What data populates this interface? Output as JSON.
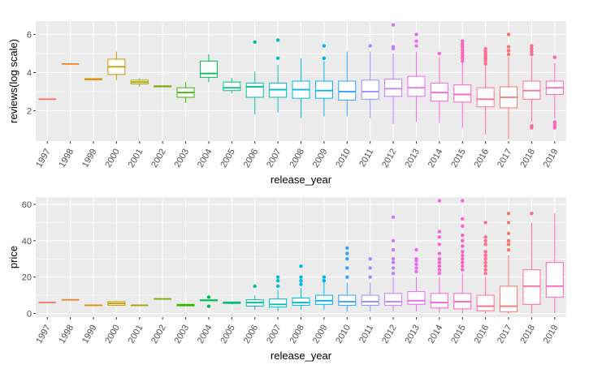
{
  "chart_data": [
    {
      "type": "box",
      "xlabel": "release_year",
      "ylabel": "reviews(log scale)",
      "ylim": [
        0.4,
        6.7
      ],
      "yticks": [
        2,
        4,
        6
      ],
      "grid": true,
      "legend": "none",
      "categories": [
        "1997",
        "1998",
        "1999",
        "2000",
        "2001",
        "2002",
        "2003",
        "2004",
        "2005",
        "2006",
        "2007",
        "2008",
        "2009",
        "2010",
        "2011",
        "2012",
        "2013",
        "2014",
        "2015",
        "2016",
        "2017",
        "2018",
        "2019"
      ],
      "colors": [
        "#F8766D",
        "#EA8331",
        "#D89000",
        "#C09B00",
        "#A3A500",
        "#7CAE00",
        "#39B600",
        "#00BB4E",
        "#00BF7D",
        "#00C1A3",
        "#00BFC4",
        "#00BAE0",
        "#00B0F6",
        "#35A2FF",
        "#9590FF",
        "#C77CFF",
        "#E76BF3",
        "#FA62DB",
        "#FF62BC",
        "#FF6C90",
        "#F8766D",
        "#FF6C90",
        "#FF62BC"
      ],
      "series": [
        {
          "x": "1997",
          "min": 2.6,
          "q1": 2.6,
          "median": 2.6,
          "q3": 2.6,
          "max": 2.6,
          "outliers": []
        },
        {
          "x": "1998",
          "min": 4.45,
          "q1": 4.45,
          "median": 4.45,
          "q3": 4.45,
          "max": 4.45,
          "outliers": []
        },
        {
          "x": "1999",
          "min": 3.6,
          "q1": 3.62,
          "median": 3.65,
          "q3": 3.68,
          "max": 3.7,
          "outliers": []
        },
        {
          "x": "2000",
          "min": 3.6,
          "q1": 3.9,
          "median": 4.3,
          "q3": 4.7,
          "max": 5.1,
          "outliers": []
        },
        {
          "x": "2001",
          "min": 3.25,
          "q1": 3.4,
          "median": 3.5,
          "q3": 3.6,
          "max": 3.7,
          "outliers": []
        },
        {
          "x": "2002",
          "min": 3.25,
          "q1": 3.25,
          "median": 3.27,
          "q3": 3.3,
          "max": 3.3,
          "outliers": []
        },
        {
          "x": "2003",
          "min": 2.4,
          "q1": 2.7,
          "median": 2.95,
          "q3": 3.2,
          "max": 3.5,
          "outliers": []
        },
        {
          "x": "2004",
          "min": 3.5,
          "q1": 3.75,
          "median": 3.95,
          "q3": 4.6,
          "max": 4.95,
          "outliers": []
        },
        {
          "x": "2005",
          "min": 2.9,
          "q1": 3.05,
          "median": 3.2,
          "q3": 3.5,
          "max": 3.7,
          "outliers": []
        },
        {
          "x": "2006",
          "min": 1.8,
          "q1": 2.7,
          "median": 3.25,
          "q3": 3.45,
          "max": 4.05,
          "outliers": [
            5.6
          ]
        },
        {
          "x": "2007",
          "min": 1.9,
          "q1": 2.7,
          "median": 3.1,
          "q3": 3.45,
          "max": 4.4,
          "outliers": [
            4.75,
            5.7
          ]
        },
        {
          "x": "2008",
          "min": 1.6,
          "q1": 2.65,
          "median": 3.1,
          "q3": 3.55,
          "max": 4.75,
          "outliers": []
        },
        {
          "x": "2009",
          "min": 1.7,
          "q1": 2.65,
          "median": 3.05,
          "q3": 3.55,
          "max": 4.6,
          "outliers": [
            4.75,
            5.4
          ]
        },
        {
          "x": "2010",
          "min": 1.7,
          "q1": 2.55,
          "median": 3.0,
          "q3": 3.55,
          "max": 5.1,
          "outliers": []
        },
        {
          "x": "2011",
          "min": 1.6,
          "q1": 2.6,
          "median": 3.0,
          "q3": 3.6,
          "max": 5.1,
          "outliers": [
            5.4
          ]
        },
        {
          "x": "2012",
          "min": 1.3,
          "q1": 2.75,
          "median": 3.15,
          "q3": 3.65,
          "max": 5.0,
          "outliers": [
            5.25,
            5.35,
            6.5
          ]
        },
        {
          "x": "2013",
          "min": 1.4,
          "q1": 2.75,
          "median": 3.2,
          "q3": 3.8,
          "max": 5.1,
          "outliers": [
            5.4,
            5.65,
            6.0
          ]
        },
        {
          "x": "2014",
          "min": 1.35,
          "q1": 2.5,
          "median": 2.95,
          "q3": 3.45,
          "max": 4.8,
          "outliers": [
            5.0
          ]
        },
        {
          "x": "2015",
          "min": 1.1,
          "q1": 2.45,
          "median": 2.85,
          "q3": 3.35,
          "max": 4.5,
          "outliers": [
            4.6,
            4.75,
            4.9,
            5.05,
            5.2,
            5.35,
            5.5,
            5.65
          ]
        },
        {
          "x": "2016",
          "min": 0.75,
          "q1": 2.2,
          "median": 2.6,
          "q3": 3.2,
          "max": 4.35,
          "outliers": [
            4.45,
            4.6,
            4.7,
            4.8,
            4.9,
            5.0,
            5.1,
            5.25
          ]
        },
        {
          "x": "2017",
          "min": 0.5,
          "q1": 2.15,
          "median": 2.7,
          "q3": 3.25,
          "max": 4.8,
          "outliers": [
            4.95,
            5.15,
            5.35,
            6.0
          ]
        },
        {
          "x": "2018",
          "min": 1.4,
          "q1": 2.6,
          "median": 3.05,
          "q3": 3.55,
          "max": 4.8,
          "outliers": [
            1.1,
            1.2,
            4.95,
            5.1,
            5.25,
            5.4
          ]
        },
        {
          "x": "2019",
          "min": 1.6,
          "q1": 2.85,
          "median": 3.2,
          "q3": 3.55,
          "max": 4.5,
          "outliers": [
            1.1,
            1.25,
            1.4,
            4.8
          ]
        }
      ]
    },
    {
      "type": "box",
      "xlabel": "release_year",
      "ylabel": "price",
      "ylim": [
        -2,
        64
      ],
      "yticks": [
        0,
        20,
        40,
        60
      ],
      "grid": true,
      "legend": "none",
      "categories": [
        "1997",
        "1998",
        "1999",
        "2000",
        "2001",
        "2002",
        "2003",
        "2004",
        "2005",
        "2006",
        "2007",
        "2008",
        "2009",
        "2010",
        "2011",
        "2012",
        "2013",
        "2014",
        "2015",
        "2016",
        "2017",
        "2018",
        "2019"
      ],
      "colors": [
        "#F8766D",
        "#EA8331",
        "#D89000",
        "#C09B00",
        "#A3A500",
        "#7CAE00",
        "#39B600",
        "#00BB4E",
        "#00BF7D",
        "#00C1A3",
        "#00BFC4",
        "#00BAE0",
        "#00B0F6",
        "#35A2FF",
        "#9590FF",
        "#C77CFF",
        "#E76BF3",
        "#FA62DB",
        "#FF62BC",
        "#FF6C90",
        "#F8766D",
        "#FF6C90",
        "#FF62BC"
      ],
      "series": [
        {
          "x": "1997",
          "min": 6,
          "q1": 6,
          "median": 6,
          "q3": 6,
          "max": 6,
          "outliers": []
        },
        {
          "x": "1998",
          "min": 7.5,
          "q1": 7.5,
          "median": 7.5,
          "q3": 7.5,
          "max": 7.5,
          "outliers": []
        },
        {
          "x": "1999",
          "min": 4.5,
          "q1": 4.5,
          "median": 4.5,
          "q3": 4.5,
          "max": 4.5,
          "outliers": []
        },
        {
          "x": "2000",
          "min": 4,
          "q1": 4.5,
          "median": 5.5,
          "q3": 6.5,
          "max": 7
        },
        {
          "x": "2001",
          "min": 4.5,
          "q1": 4.5,
          "median": 4.5,
          "q3": 4.5,
          "max": 4.5,
          "outliers": []
        },
        {
          "x": "2002",
          "min": 8,
          "q1": 8,
          "median": 8,
          "q3": 8,
          "max": 8,
          "outliers": []
        },
        {
          "x": "2003",
          "min": 4,
          "q1": 4.2,
          "median": 4.5,
          "q3": 5,
          "max": 5.2,
          "outliers": []
        },
        {
          "x": "2004",
          "min": 7,
          "q1": 7,
          "median": 7.2,
          "q3": 7.5,
          "max": 7.5,
          "outliers": [
            4,
            9
          ]
        },
        {
          "x": "2005",
          "min": 5,
          "q1": 5.5,
          "median": 6,
          "q3": 6.3,
          "max": 6.5,
          "outliers": []
        },
        {
          "x": "2006",
          "min": 2,
          "q1": 4,
          "median": 6,
          "q3": 7.5,
          "max": 10,
          "outliers": [
            15
          ]
        },
        {
          "x": "2007",
          "min": 1,
          "q1": 3.5,
          "median": 5,
          "q3": 8,
          "max": 13,
          "outliers": [
            15,
            18,
            20
          ]
        },
        {
          "x": "2008",
          "min": 2,
          "q1": 4.5,
          "median": 6,
          "q3": 8.5,
          "max": 14,
          "outliers": [
            16,
            18,
            20,
            26
          ]
        },
        {
          "x": "2009",
          "min": 2,
          "q1": 5,
          "median": 7,
          "q3": 10,
          "max": 17,
          "outliers": [
            18,
            20
          ]
        },
        {
          "x": "2010",
          "min": 1,
          "q1": 4.5,
          "median": 6.5,
          "q3": 10,
          "max": 17,
          "outliers": [
            20,
            25,
            30,
            33,
            36
          ]
        },
        {
          "x": "2011",
          "min": 1,
          "q1": 4.5,
          "median": 6.5,
          "q3": 10,
          "max": 17,
          "outliers": [
            20,
            25,
            30
          ]
        },
        {
          "x": "2012",
          "min": 1,
          "q1": 4.5,
          "median": 6.5,
          "q3": 11,
          "max": 20,
          "outliers": [
            22,
            25,
            28,
            30,
            35,
            40,
            53
          ]
        },
        {
          "x": "2013",
          "min": 1,
          "q1": 5,
          "median": 7,
          "q3": 12,
          "max": 20,
          "outliers": [
            23,
            25,
            27,
            29,
            30,
            35
          ]
        },
        {
          "x": "2014",
          "min": 0,
          "q1": 3,
          "median": 6,
          "q3": 11,
          "max": 20,
          "outliers": [
            22,
            24,
            26,
            28,
            30,
            33,
            38,
            42,
            45,
            62
          ]
        },
        {
          "x": "2015",
          "min": 0,
          "q1": 2.5,
          "median": 6.5,
          "q3": 11,
          "max": 22,
          "outliers": [
            24,
            26,
            28,
            30,
            32,
            34,
            37,
            40,
            43,
            48,
            52,
            62
          ]
        },
        {
          "x": "2016",
          "min": 0,
          "q1": 1.5,
          "median": 4,
          "q3": 10,
          "max": 20,
          "outliers": [
            22,
            24,
            26,
            28,
            30,
            32,
            34,
            38,
            40,
            42,
            50
          ]
        },
        {
          "x": "2017",
          "min": 0,
          "q1": 1,
          "median": 4,
          "q3": 15,
          "max": 32,
          "outliers": [
            35,
            38,
            40,
            44,
            50,
            55
          ]
        },
        {
          "x": "2018",
          "min": 0,
          "q1": 5,
          "median": 15,
          "q3": 24,
          "max": 50,
          "outliers": [
            55
          ]
        },
        {
          "x": "2019",
          "min": 0,
          "q1": 9,
          "median": 15,
          "q3": 28,
          "max": 55,
          "outliers": []
        }
      ]
    }
  ]
}
